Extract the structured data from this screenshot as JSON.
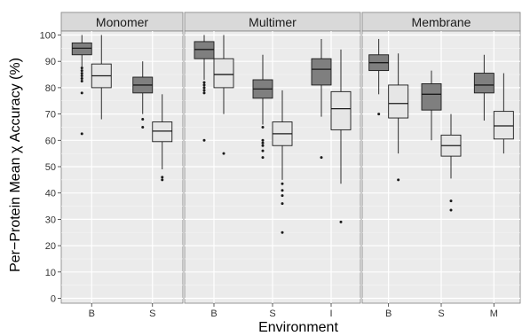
{
  "chart_data": {
    "type": "boxplot",
    "xlabel": "Environment",
    "ylabel": "Per−Protein Mean χ Accuracy (%)",
    "ylim": [
      0,
      100
    ],
    "yticks": [
      0,
      10,
      20,
      30,
      40,
      50,
      60,
      70,
      80,
      90,
      100
    ],
    "grid": true,
    "colors": {
      "panel_bg": "#ebebeb",
      "grid": "#ffffff",
      "strip_bg": "#d9d9d9",
      "box_dark": "#7f7f7f",
      "box_light": "#e6e6e6",
      "line": "#1a1a1a"
    },
    "panels": [
      {
        "name": "Monomer",
        "categories": [
          "B",
          "S"
        ],
        "boxes": [
          {
            "category": "B",
            "fill": "dark",
            "whisker_low": 88,
            "q1": 92.5,
            "median": 95,
            "q3": 97,
            "whisker_high": 100,
            "outliers": [
              87.5,
              86.5,
              85.5,
              84.5,
              83.5,
              82.5,
              78,
              62.5
            ]
          },
          {
            "category": "B",
            "fill": "light",
            "whisker_low": 68,
            "q1": 80,
            "median": 84.5,
            "q3": 89,
            "whisker_high": 100,
            "outliers": []
          },
          {
            "category": "S",
            "fill": "dark",
            "whisker_low": 70,
            "q1": 78,
            "median": 81,
            "q3": 84,
            "whisker_high": 90,
            "outliers": [
              68,
              65
            ]
          },
          {
            "category": "S",
            "fill": "light",
            "whisker_low": 49,
            "q1": 59.5,
            "median": 63.5,
            "q3": 67,
            "whisker_high": 77.5,
            "outliers": [
              46,
              45
            ]
          }
        ]
      },
      {
        "name": "Multimer",
        "categories": [
          "B",
          "S",
          "I"
        ],
        "boxes": [
          {
            "category": "B",
            "fill": "dark",
            "whisker_low": 83,
            "q1": 91,
            "median": 94.5,
            "q3": 97.5,
            "whisker_high": 100,
            "outliers": [
              82,
              81,
              80,
              79,
              78,
              60
            ]
          },
          {
            "category": "B",
            "fill": "light",
            "whisker_low": 70,
            "q1": 80,
            "median": 85,
            "q3": 91,
            "whisker_high": 100,
            "outliers": [
              55
            ]
          },
          {
            "category": "S",
            "fill": "dark",
            "whisker_low": 66,
            "q1": 76,
            "median": 79.5,
            "q3": 83,
            "whisker_high": 92.5,
            "outliers": [
              65,
              60,
              59,
              58,
              56,
              53.5
            ]
          },
          {
            "category": "S",
            "fill": "light",
            "whisker_low": 45,
            "q1": 58,
            "median": 62.5,
            "q3": 67,
            "whisker_high": 79,
            "outliers": [
              43.5,
              41,
              39,
              36,
              25
            ]
          },
          {
            "category": "I",
            "fill": "dark",
            "whisker_low": 69,
            "q1": 81,
            "median": 87,
            "q3": 91,
            "whisker_high": 98.5,
            "outliers": [
              53.5
            ]
          },
          {
            "category": "I",
            "fill": "light",
            "whisker_low": 43.5,
            "q1": 64,
            "median": 72,
            "q3": 78.5,
            "whisker_high": 94.5,
            "outliers": [
              29
            ]
          }
        ]
      },
      {
        "name": "Membrane",
        "categories": [
          "B",
          "S",
          "M"
        ],
        "boxes": [
          {
            "category": "B",
            "fill": "dark",
            "whisker_low": 77.5,
            "q1": 86.5,
            "median": 89.5,
            "q3": 92.5,
            "whisker_high": 98.5,
            "outliers": [
              70
            ]
          },
          {
            "category": "B",
            "fill": "light",
            "whisker_low": 55,
            "q1": 68.5,
            "median": 74,
            "q3": 81,
            "whisker_high": 93,
            "outliers": [
              45
            ]
          },
          {
            "category": "S",
            "fill": "dark",
            "whisker_low": 60,
            "q1": 71.5,
            "median": 77.5,
            "q3": 81.5,
            "whisker_high": 86.5,
            "outliers": []
          },
          {
            "category": "S",
            "fill": "light",
            "whisker_low": 45.5,
            "q1": 54,
            "median": 58,
            "q3": 62,
            "whisker_high": 70,
            "outliers": [
              37,
              33.5
            ]
          },
          {
            "category": "M",
            "fill": "dark",
            "whisker_low": 67.5,
            "q1": 78,
            "median": 81,
            "q3": 85.5,
            "whisker_high": 92.5,
            "outliers": []
          },
          {
            "category": "M",
            "fill": "light",
            "whisker_low": 55,
            "q1": 60.5,
            "median": 65.5,
            "q3": 71,
            "whisker_high": 85.5,
            "outliers": []
          }
        ]
      }
    ]
  }
}
